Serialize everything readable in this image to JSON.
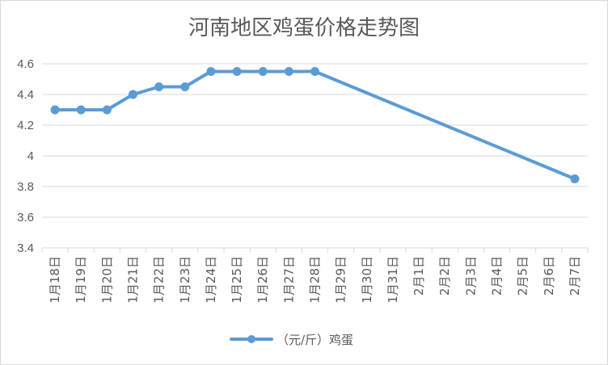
{
  "chart_data": {
    "type": "line",
    "title": "河南地区鸡蛋价格走势图",
    "categories": [
      "1月18日",
      "1月19日",
      "1月20日",
      "1月21日",
      "1月22日",
      "1月23日",
      "1月24日",
      "1月25日",
      "1月26日",
      "1月27日",
      "1月28日",
      "1月29日",
      "1月30日",
      "1月31日",
      "2月1日",
      "2月2日",
      "2月3日",
      "2月4日",
      "2月5日",
      "2月6日",
      "2月7日"
    ],
    "yticks": [
      "3.4",
      "3.6",
      "3.8",
      "4",
      "4.2",
      "4.4",
      "4.6"
    ],
    "ylim": [
      3.4,
      4.6
    ],
    "grid": true,
    "legend_position": "bottom",
    "series": [
      {
        "name": "（元/斤）鸡蛋",
        "color": "#5b9bd5",
        "values": [
          4.3,
          4.3,
          4.3,
          4.4,
          4.45,
          4.45,
          4.55,
          4.55,
          4.55,
          4.55,
          4.55,
          null,
          null,
          null,
          null,
          null,
          null,
          null,
          null,
          null,
          3.85
        ]
      }
    ]
  }
}
